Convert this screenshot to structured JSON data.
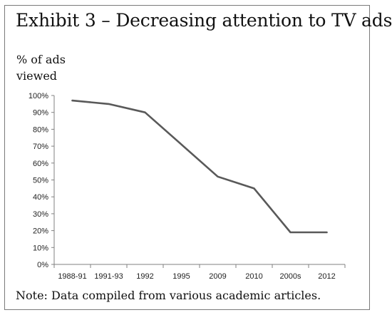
{
  "header": {
    "title": "Exhibit 3 – Decreasing attention to TV ads"
  },
  "footer": {
    "note": "Note: Data compiled from various academic articles."
  },
  "chart_data": {
    "type": "line",
    "title": "Exhibit 3 – Decreasing attention to TV ads",
    "xlabel": "",
    "ylabel": "% of ads viewed",
    "categories": [
      "1988-91",
      "1991-93",
      "1992",
      "1995",
      "2009",
      "2010",
      "2000s",
      "2012"
    ],
    "series": [
      {
        "values": [
          97,
          95,
          90,
          71,
          52,
          45,
          19,
          19
        ]
      }
    ],
    "ylim": [
      0,
      100
    ],
    "yticks": [
      "0%",
      "10%",
      "20%",
      "30%",
      "40%",
      "50%",
      "60%",
      "70%",
      "80%",
      "90%",
      "100%"
    ],
    "line_color": "#595959",
    "grid": false,
    "legend": "none"
  }
}
